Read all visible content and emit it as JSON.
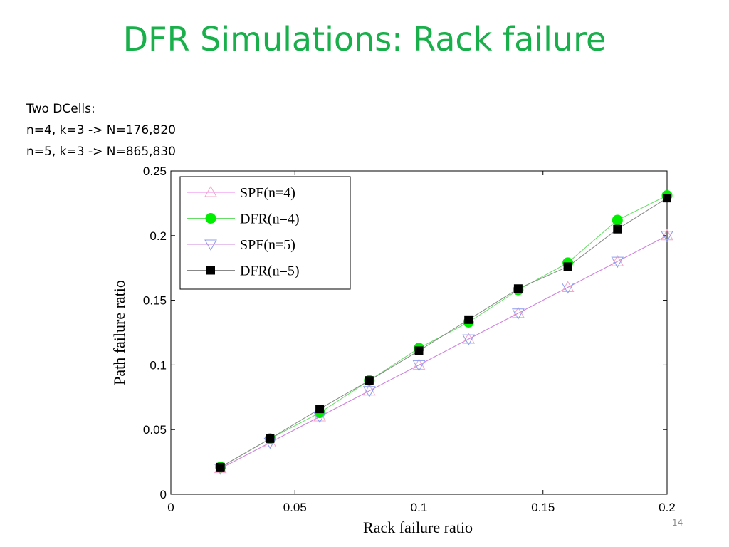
{
  "slide": {
    "title": "DFR Simulations: Rack failure",
    "description": [
      "Two DCells:",
      "n=4, k=3 -> N=176,820",
      "n=5, k=3 -> N=865,830"
    ],
    "page_number": "14"
  },
  "chart_data": {
    "type": "line",
    "title": "",
    "xlabel": "Rack failure ratio",
    "ylabel": "Path failure ratio",
    "xlim": [
      0,
      0.2
    ],
    "ylim": [
      0,
      0.25
    ],
    "xticks": [
      0,
      0.05,
      0.1,
      0.15,
      0.2
    ],
    "xtick_labels": [
      "0",
      "0.05",
      "0.1",
      "0.15",
      "0.2"
    ],
    "yticks": [
      0,
      0.05,
      0.1,
      0.15,
      0.2,
      0.25
    ],
    "ytick_labels": [
      "0",
      "0.05",
      "0.1",
      "0.15",
      "0.2",
      "0.25"
    ],
    "grid": false,
    "legend_position": "top-left",
    "x": [
      0.02,
      0.04,
      0.06,
      0.08,
      0.1,
      0.12,
      0.14,
      0.16,
      0.18,
      0.2
    ],
    "series": [
      {
        "name": "SPF(n=4)",
        "marker": "triangle-up",
        "color": "#f4a6c6",
        "filled": false,
        "values": [
          0.02,
          0.04,
          0.06,
          0.08,
          0.1,
          0.12,
          0.14,
          0.16,
          0.18,
          0.2
        ]
      },
      {
        "name": "DFR(n=4)",
        "marker": "circle",
        "color": "#00ee00",
        "filled": true,
        "values": [
          0.021,
          0.043,
          0.063,
          0.088,
          0.113,
          0.133,
          0.158,
          0.179,
          0.212,
          0.231
        ]
      },
      {
        "name": "SPF(n=5)",
        "marker": "triangle-down",
        "color": "#8c9cf0",
        "filled": false,
        "values": [
          0.02,
          0.04,
          0.06,
          0.08,
          0.1,
          0.12,
          0.14,
          0.16,
          0.18,
          0.2
        ]
      },
      {
        "name": "DFR(n=5)",
        "marker": "square",
        "color": "#000000",
        "filled": true,
        "values": [
          0.021,
          0.043,
          0.066,
          0.088,
          0.111,
          0.135,
          0.159,
          0.176,
          0.205,
          0.229
        ]
      }
    ],
    "connector_colors": {
      "SPF(n=4)": "#ee82ee",
      "DFR(n=4)": "#66dd66",
      "SPF(n=5)": "#cc88dd",
      "DFR(n=5)": "#888888"
    }
  }
}
